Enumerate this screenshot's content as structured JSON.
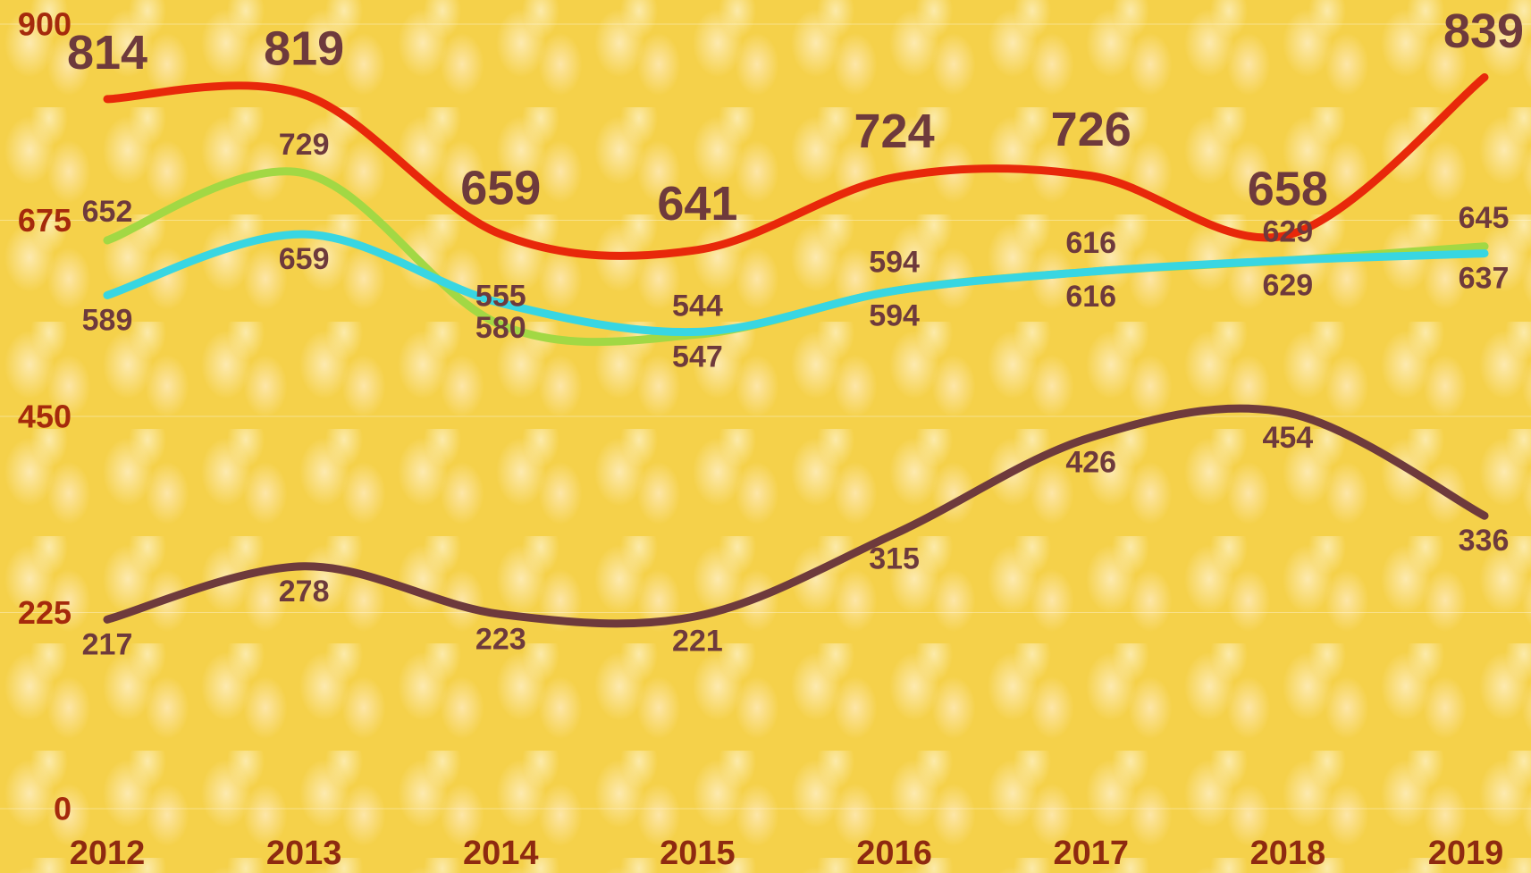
{
  "chart_data": {
    "type": "line",
    "categories": [
      "2012",
      "2013",
      "2014",
      "2015",
      "2016",
      "2017",
      "2018",
      "2019"
    ],
    "series": [
      {
        "color": "#e8280a",
        "values": [
          814,
          819,
          659,
          641,
          724,
          726,
          658,
          839
        ]
      },
      {
        "color": "#a2d844",
        "values": [
          652,
          729,
          555,
          544,
          594,
          616,
          629,
          645
        ]
      },
      {
        "color": "#38d6e2",
        "values": [
          589,
          659,
          580,
          547,
          594,
          616,
          629,
          637
        ]
      },
      {
        "color": "#6e3a3c",
        "values": [
          217,
          278,
          223,
          221,
          315,
          426,
          454,
          336
        ]
      }
    ],
    "ylim": [
      0,
      900
    ],
    "yticks": [
      0,
      225,
      450,
      675,
      900
    ],
    "grid": true
  }
}
